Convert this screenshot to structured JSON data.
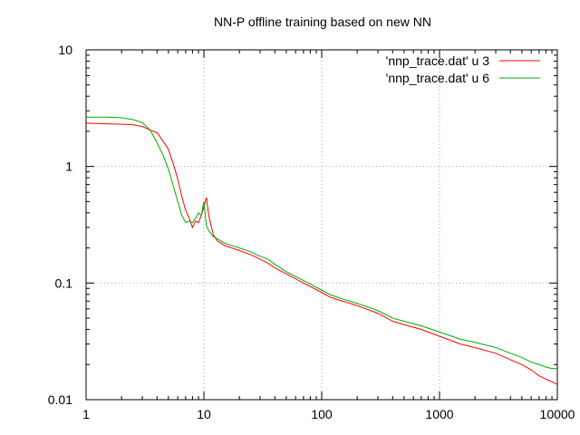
{
  "chart_data": {
    "type": "line",
    "title": "NN-P offline training based on new NN",
    "xlabel": "",
    "ylabel": "",
    "xscale": "log",
    "yscale": "log",
    "xlim": [
      1,
      10000
    ],
    "ylim": [
      0.01,
      10
    ],
    "x_tick_labels": [
      "1",
      "10",
      "100",
      "1000",
      "10000"
    ],
    "y_tick_labels": [
      "0.01",
      "0.1",
      "1",
      "10"
    ],
    "grid": true,
    "legend_position": "top-right",
    "series": [
      {
        "name": "'nnp_trace.dat' u 3",
        "color": "#ff0000",
        "points": [
          [
            1,
            2.35
          ],
          [
            1.5,
            2.32
          ],
          [
            2,
            2.3
          ],
          [
            2.5,
            2.28
          ],
          [
            3,
            2.2
          ],
          [
            3.5,
            2.05
          ],
          [
            4,
            1.95
          ],
          [
            4.5,
            1.65
          ],
          [
            5,
            1.4
          ],
          [
            5.5,
            1.05
          ],
          [
            6,
            0.78
          ],
          [
            6.5,
            0.55
          ],
          [
            7,
            0.42
          ],
          [
            7.5,
            0.36
          ],
          [
            8,
            0.3
          ],
          [
            8.5,
            0.34
          ],
          [
            9,
            0.33
          ],
          [
            9.5,
            0.38
          ],
          [
            10,
            0.45
          ],
          [
            10.5,
            0.54
          ],
          [
            11,
            0.38
          ],
          [
            12,
            0.26
          ],
          [
            13,
            0.23
          ],
          [
            15,
            0.21
          ],
          [
            20,
            0.19
          ],
          [
            25,
            0.175
          ],
          [
            30,
            0.16
          ],
          [
            35,
            0.148
          ],
          [
            40,
            0.135
          ],
          [
            50,
            0.12
          ],
          [
            70,
            0.1
          ],
          [
            100,
            0.083
          ],
          [
            120,
            0.075
          ],
          [
            150,
            0.07
          ],
          [
            200,
            0.064
          ],
          [
            300,
            0.055
          ],
          [
            400,
            0.047
          ],
          [
            500,
            0.044
          ],
          [
            700,
            0.04
          ],
          [
            1000,
            0.035
          ],
          [
            1500,
            0.03
          ],
          [
            2000,
            0.028
          ],
          [
            3000,
            0.025
          ],
          [
            4000,
            0.022
          ],
          [
            5000,
            0.02
          ],
          [
            6000,
            0.018
          ],
          [
            7000,
            0.016
          ],
          [
            8000,
            0.015
          ],
          [
            9000,
            0.0142
          ],
          [
            10000,
            0.0135
          ]
        ]
      },
      {
        "name": "'nnp_trace.dat' u 6",
        "color": "#00aa00",
        "points": [
          [
            1,
            2.65
          ],
          [
            1.5,
            2.65
          ],
          [
            2,
            2.62
          ],
          [
            2.5,
            2.52
          ],
          [
            3,
            2.38
          ],
          [
            3.5,
            2.05
          ],
          [
            4,
            1.6
          ],
          [
            4.5,
            1.25
          ],
          [
            5,
            0.95
          ],
          [
            5.5,
            0.68
          ],
          [
            6,
            0.5
          ],
          [
            6.5,
            0.38
          ],
          [
            7,
            0.33
          ],
          [
            7.5,
            0.34
          ],
          [
            8,
            0.33
          ],
          [
            8.5,
            0.36
          ],
          [
            9,
            0.4
          ],
          [
            9.5,
            0.38
          ],
          [
            10,
            0.5
          ],
          [
            10.5,
            0.31
          ],
          [
            11,
            0.28
          ],
          [
            12,
            0.25
          ],
          [
            13,
            0.24
          ],
          [
            15,
            0.22
          ],
          [
            20,
            0.2
          ],
          [
            25,
            0.185
          ],
          [
            30,
            0.17
          ],
          [
            35,
            0.16
          ],
          [
            40,
            0.145
          ],
          [
            50,
            0.125
          ],
          [
            70,
            0.105
          ],
          [
            100,
            0.087
          ],
          [
            120,
            0.079
          ],
          [
            150,
            0.073
          ],
          [
            200,
            0.067
          ],
          [
            300,
            0.058
          ],
          [
            400,
            0.05
          ],
          [
            500,
            0.047
          ],
          [
            700,
            0.043
          ],
          [
            1000,
            0.038
          ],
          [
            1500,
            0.033
          ],
          [
            2000,
            0.031
          ],
          [
            3000,
            0.028
          ],
          [
            4000,
            0.025
          ],
          [
            5000,
            0.023
          ],
          [
            6000,
            0.021
          ],
          [
            7000,
            0.02
          ],
          [
            8000,
            0.019
          ],
          [
            9000,
            0.0185
          ],
          [
            10000,
            0.0185
          ]
        ]
      }
    ]
  }
}
